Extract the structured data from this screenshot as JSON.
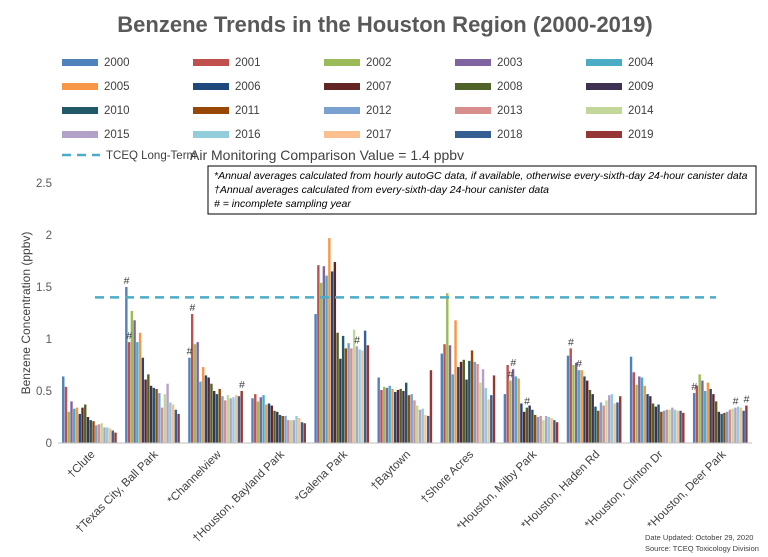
{
  "chart_data": {
    "type": "bar",
    "title": "Benzene Trends in the Houston Region (2000-2019)",
    "ylabel": "Benzene Concentration (ppbv)",
    "xlabel": "",
    "ylim": [
      0,
      2.5
    ],
    "yticks": [
      0,
      0.5,
      1,
      1.5,
      2,
      2.5
    ],
    "ytick_labels": [
      "0",
      "0.5",
      "1",
      "1.5",
      "2",
      "2.5"
    ],
    "legend_position": "top",
    "categories": [
      "†Clute",
      "†Texas City, Ball Park",
      "*Channelview",
      "†Houston, Bayland Park",
      "*Galena Park",
      "†Baytown",
      "†Shore Acres",
      "*Houston, Milby Park",
      "*Houston, Haden Rd",
      "*Houston, Clinton Dr",
      "*Houston, Deer Park"
    ],
    "series": [
      {
        "name": "2000",
        "color": "#4f81bd",
        "values": [
          0.64,
          1.5,
          0.82,
          0.43,
          1.24,
          0.63,
          0.86,
          0.47,
          0.84,
          0.83,
          0.48
        ]
      },
      {
        "name": "2001",
        "color": "#c0504d",
        "values": [
          0.54,
          0.97,
          1.24,
          0.47,
          1.71,
          0.51,
          0.95,
          0.75,
          0.91,
          0.68,
          0.55
        ]
      },
      {
        "name": "2002",
        "color": "#9bbb59",
        "values": [
          0.3,
          1.27,
          0.95,
          0.4,
          1.54,
          0.54,
          1.44,
          0.6,
          0.75,
          0.56,
          0.66
        ]
      },
      {
        "name": "2003",
        "color": "#8064a2",
        "values": [
          0.4,
          1.18,
          0.97,
          0.44,
          1.7,
          0.53,
          0.94,
          0.71,
          0.77,
          0.64,
          0.6
        ]
      },
      {
        "name": "2004",
        "color": "#4bacc6",
        "values": [
          0.33,
          0.97,
          0.59,
          0.46,
          1.61,
          0.55,
          0.66,
          0.64,
          0.7,
          0.63,
          0.5
        ]
      },
      {
        "name": "2005",
        "color": "#f79646",
        "values": [
          0.34,
          1.06,
          0.73,
          0.37,
          1.97,
          0.52,
          1.18,
          0.62,
          0.7,
          0.55,
          0.58
        ]
      },
      {
        "name": "2006",
        "color": "#1f497d",
        "values": [
          0.28,
          0.82,
          0.65,
          0.38,
          1.65,
          0.49,
          0.73,
          0.38,
          0.64,
          0.47,
          0.52
        ]
      },
      {
        "name": "2007",
        "color": "#632523",
        "values": [
          0.34,
          0.61,
          0.63,
          0.36,
          1.74,
          0.51,
          0.78,
          0.3,
          0.6,
          0.45,
          0.47
        ]
      },
      {
        "name": "2008",
        "color": "#4f6228",
        "values": [
          0.37,
          0.66,
          0.57,
          0.31,
          1.06,
          0.52,
          0.8,
          0.34,
          0.51,
          0.38,
          0.4
        ]
      },
      {
        "name": "2009",
        "color": "#3f3151",
        "values": [
          0.25,
          0.55,
          0.5,
          0.3,
          0.81,
          0.5,
          0.61,
          0.36,
          0.47,
          0.35,
          0.3
        ]
      },
      {
        "name": "2010",
        "color": "#215968",
        "values": [
          0.22,
          0.53,
          0.47,
          0.27,
          1.03,
          0.58,
          0.79,
          0.32,
          0.35,
          0.37,
          0.28
        ]
      },
      {
        "name": "2011",
        "color": "#974806",
        "values": [
          0.21,
          0.52,
          0.52,
          0.26,
          0.91,
          0.46,
          0.89,
          0.27,
          0.31,
          0.3,
          0.29
        ]
      },
      {
        "name": "2012",
        "color": "#7aa0cf",
        "values": [
          0.17,
          0.48,
          0.45,
          0.26,
          0.96,
          0.47,
          0.78,
          0.25,
          0.39,
          0.31,
          0.3
        ]
      },
      {
        "name": "2013",
        "color": "#d88e8c",
        "values": [
          0.18,
          0.34,
          0.41,
          0.22,
          0.91,
          0.41,
          0.76,
          0.26,
          0.36,
          0.32,
          0.32
        ]
      },
      {
        "name": "2014",
        "color": "#c4d79b",
        "values": [
          0.19,
          0.47,
          0.46,
          0.22,
          1.09,
          0.36,
          0.58,
          0.22,
          0.41,
          0.32,
          0.33
        ]
      },
      {
        "name": "2015",
        "color": "#b3a2c7",
        "values": [
          0.15,
          0.57,
          0.43,
          0.22,
          0.93,
          0.32,
          0.71,
          0.26,
          0.46,
          0.34,
          0.34
        ]
      },
      {
        "name": "2016",
        "color": "#92cddc",
        "values": [
          0.15,
          0.39,
          0.44,
          0.26,
          0.9,
          0.33,
          0.53,
          0.25,
          0.47,
          0.32,
          0.35
        ]
      },
      {
        "name": "2017",
        "color": "#fac090",
        "values": [
          0.14,
          0.37,
          0.46,
          0.24,
          0.89,
          0.27,
          0.42,
          0.24,
          0.38,
          0.31,
          0.34
        ]
      },
      {
        "name": "2018",
        "color": "#376092",
        "values": [
          0.12,
          0.32,
          0.45,
          0.2,
          1.08,
          0.26,
          0.46,
          0.22,
          0.39,
          0.31,
          0.31
        ]
      },
      {
        "name": "2019",
        "color": "#953735",
        "values": [
          0.1,
          0.28,
          0.5,
          0.19,
          0.94,
          0.7,
          0.65,
          0.2,
          0.45,
          0.29,
          0.36
        ]
      }
    ],
    "reference_line": {
      "label_prefix": "TCEQ Long-Term",
      "label_suffix": "Air Monitoring Comparison Value = 1.4 ppbv",
      "value": 1.4,
      "color": "#4bacc6"
    },
    "incomplete_flags": [
      {
        "category": 1,
        "series": 0,
        "label": "#"
      },
      {
        "category": 1,
        "series": 1,
        "label": "#"
      },
      {
        "category": 2,
        "series": 1,
        "label": "#"
      },
      {
        "category": 2,
        "series": 0,
        "label": "#"
      },
      {
        "category": 2,
        "series": 19,
        "label": "#"
      },
      {
        "category": 4,
        "series": 15,
        "label": "#"
      },
      {
        "category": 7,
        "series": 2,
        "label": "#"
      },
      {
        "category": 7,
        "series": 3,
        "label": "#"
      },
      {
        "category": 7,
        "series": 8,
        "label": "#"
      },
      {
        "category": 8,
        "series": 1,
        "label": "#"
      },
      {
        "category": 8,
        "series": 4,
        "label": "#"
      },
      {
        "category": 10,
        "series": 0,
        "label": "#"
      },
      {
        "category": 10,
        "series": 15,
        "label": "#"
      },
      {
        "category": 10,
        "series": 19,
        "label": "#"
      }
    ],
    "notes": [
      "*Annual averages calculated from hourly autoGC data, if available, otherwise every-sixth-day 24-hour canister data",
      "†Annual averages calculated from every-sixth-day 24-hour canister data",
      "# = incomplete sampling year"
    ],
    "footer": {
      "date_updated": "Date Updated: October 29, 2020",
      "source": "Source: TCEQ Toxicology Division"
    }
  }
}
